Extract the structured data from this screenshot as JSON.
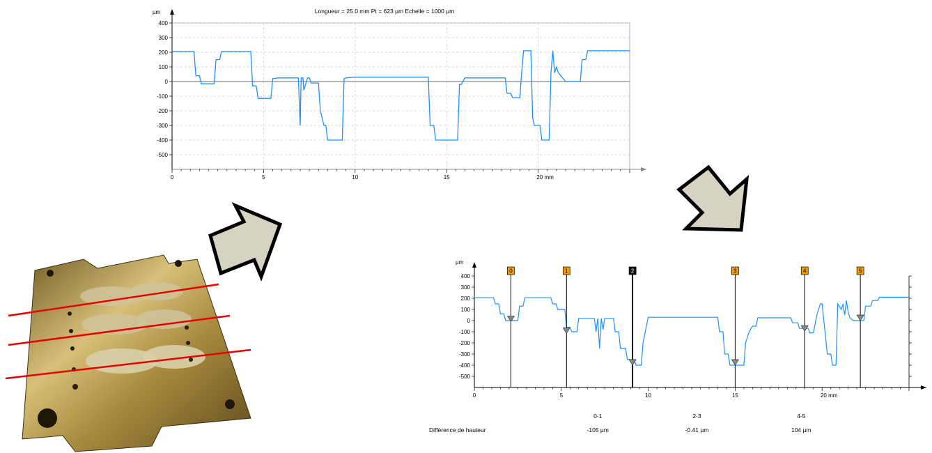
{
  "chart_data": [
    {
      "type": "line",
      "title": "Longueur = 25.0 mm  Pt = 623 µm  Echelle = 1000 µm",
      "y_unit": "µm",
      "x_unit_label": "20 mm",
      "xlim": [
        0,
        25
      ],
      "ylim": [
        -600,
        400
      ],
      "x_ticks": [
        "0",
        "5",
        "10",
        "15",
        "20 mm"
      ],
      "x_tick_values": [
        0,
        5,
        10,
        15,
        20
      ],
      "y_ticks": [
        400,
        300,
        200,
        100,
        0,
        -100,
        -200,
        -300,
        -400,
        -500
      ],
      "grid": true,
      "line_color": "#1f8fff",
      "zero_line_color": "#888888",
      "series": [
        {
          "x": [
            0,
            1.2,
            1.3,
            1.5,
            1.6,
            2.3,
            2.4,
            2.6,
            2.7,
            4.3,
            4.4,
            4.6,
            4.7,
            5.4,
            5.5,
            5.8,
            6.9,
            7.0,
            7.05,
            7.15,
            7.2,
            7.4,
            7.5,
            7.6,
            8.0,
            8.1,
            8.3,
            8.4,
            8.5,
            9.3,
            9.4,
            9.5,
            10.0,
            14.0,
            14.1,
            14.3,
            14.4,
            15.6,
            15.7,
            15.8,
            16.0,
            18.2,
            18.3,
            18.5,
            18.6,
            19.0,
            19.1,
            19.2,
            19.6,
            19.7,
            19.8,
            20.1,
            20.2,
            20.6,
            20.7,
            20.8,
            20.9,
            21.0,
            21.1,
            21.5,
            21.6,
            22.3,
            22.4,
            22.6,
            22.7,
            25.0
          ],
          "y": [
            205,
            205,
            40,
            40,
            -15,
            -15,
            150,
            150,
            205,
            205,
            -30,
            -30,
            -115,
            -115,
            20,
            25,
            25,
            -300,
            25,
            25,
            -60,
            25,
            25,
            -10,
            -10,
            -200,
            -300,
            -300,
            -400,
            -400,
            20,
            25,
            30,
            30,
            -300,
            -300,
            -400,
            -400,
            -20,
            -20,
            25,
            25,
            -80,
            -80,
            -110,
            -110,
            60,
            210,
            210,
            -250,
            -300,
            -300,
            -400,
            -400,
            60,
            210,
            60,
            100,
            60,
            0,
            0,
            0,
            150,
            150,
            210,
            210
          ]
        }
      ]
    },
    {
      "type": "line",
      "y_unit": "µm",
      "x_unit_label": "20 mm",
      "xlim": [
        0,
        25
      ],
      "ylim": [
        -600,
        400
      ],
      "x_ticks": [
        "0",
        "5",
        "10",
        "15",
        "20 mm"
      ],
      "x_tick_values": [
        0,
        5,
        10,
        15,
        20
      ],
      "y_ticks": [
        400,
        300,
        200,
        100,
        0,
        -100,
        -200,
        -300,
        -400,
        -500
      ],
      "grid": false,
      "line_color": "#1f8fff",
      "cursor_color": "#f59a00",
      "cursor_active_color": "#111111",
      "cursors": [
        {
          "label": "0",
          "x": 2.1,
          "y": 15,
          "active": false
        },
        {
          "label": "1",
          "x": 5.3,
          "y": -90,
          "active": false
        },
        {
          "label": "2",
          "x": 9.1,
          "y": -375,
          "active": true
        },
        {
          "label": "3",
          "x": 15.0,
          "y": -375,
          "active": false
        },
        {
          "label": "4",
          "x": 19.0,
          "y": -70,
          "active": false
        },
        {
          "label": "5",
          "x": 22.2,
          "y": 25,
          "active": false
        }
      ],
      "series": [
        {
          "x": [
            0,
            1.1,
            1.2,
            1.4,
            1.5,
            1.7,
            1.8,
            2.5,
            2.6,
            2.8,
            2.9,
            4.4,
            4.5,
            4.7,
            4.8,
            5.2,
            5.3,
            5.5,
            5.6,
            5.9,
            6.0,
            6.9,
            7.0,
            7.1,
            7.2,
            7.3,
            7.4,
            7.5,
            7.7,
            8.0,
            8.1,
            8.3,
            8.4,
            8.7,
            8.8,
            9.2,
            9.3,
            9.6,
            9.7,
            10.0,
            14.0,
            14.1,
            14.3,
            14.4,
            14.6,
            14.7,
            15.3,
            15.5,
            15.6,
            15.8,
            16.0,
            16.2,
            16.3,
            18.2,
            18.3,
            18.6,
            18.7,
            19.2,
            19.3,
            19.5,
            19.7,
            19.9,
            20.0,
            20.2,
            20.3,
            20.5,
            20.6,
            20.8,
            20.9,
            21.1,
            21.2,
            21.3,
            21.4,
            21.5,
            21.6,
            21.8,
            22.0,
            22.4,
            22.5,
            22.8,
            22.9,
            23.2,
            23.3,
            25.0
          ],
          "y": [
            205,
            205,
            150,
            150,
            60,
            60,
            0,
            0,
            130,
            130,
            205,
            205,
            150,
            150,
            100,
            100,
            -60,
            -60,
            -100,
            -100,
            20,
            20,
            -100,
            20,
            -250,
            20,
            -80,
            20,
            20,
            20,
            -100,
            -100,
            -250,
            -250,
            -350,
            -350,
            -400,
            -400,
            -200,
            30,
            30,
            -100,
            -100,
            -300,
            -300,
            -400,
            -400,
            -400,
            -200,
            -100,
            -50,
            -50,
            25,
            25,
            -20,
            -20,
            -70,
            -70,
            -110,
            -110,
            50,
            150,
            150,
            -150,
            -300,
            -300,
            -400,
            -400,
            150,
            100,
            150,
            50,
            180,
            80,
            25,
            0,
            0,
            0,
            130,
            130,
            180,
            180,
            210,
            210
          ]
        }
      ],
      "differences": {
        "label": "Différence de hauteur",
        "items": [
          {
            "pair": "0-1",
            "value": "-105 µm",
            "x": 7.1
          },
          {
            "pair": "2-3",
            "value": "-0.41 µm",
            "x": 12.8
          },
          {
            "pair": "4-5",
            "value": "104 µm",
            "x": 18.8
          }
        ]
      }
    }
  ],
  "arrows": [
    {
      "name": "arrow-to-top-chart",
      "direction": "up-right"
    },
    {
      "name": "arrow-to-bottom-chart",
      "direction": "down-right"
    }
  ],
  "photo": {
    "description_icon": "brass-plate-photo-icon",
    "plate_color": "#b8963f",
    "line_color": "#e60000"
  }
}
